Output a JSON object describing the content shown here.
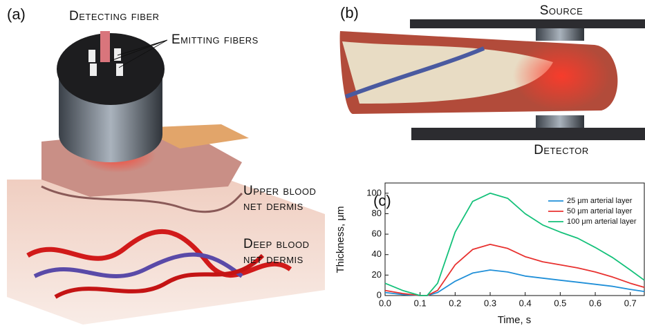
{
  "panels": {
    "a": {
      "label": "(a)",
      "annotations": [
        "Detecting fiber",
        "Emitting fibers",
        "Upper blood",
        "net dermis",
        "Deep blood",
        "net dermis"
      ]
    },
    "b": {
      "label": "(b)",
      "annotations": [
        "Source",
        "Detector"
      ]
    }
  },
  "chart_data": {
    "type": "line",
    "label": "(c)",
    "xlabel": "Time, s",
    "ylabel": "Thickness, μm",
    "x": [
      0,
      0.05,
      0.1,
      0.12,
      0.15,
      0.2,
      0.25,
      0.3,
      0.35,
      0.4,
      0.45,
      0.5,
      0.55,
      0.6,
      0.65,
      0.7,
      0.74
    ],
    "series": [
      {
        "name": "25 μm arterial layer",
        "color": "#1f8fd8",
        "values": [
          3,
          1,
          0,
          0,
          3,
          14,
          22,
          25,
          23,
          19,
          17,
          15,
          13,
          11,
          9,
          6,
          4
        ]
      },
      {
        "name": "50 μm arterial layer",
        "color": "#e8312f",
        "values": [
          5,
          2,
          0,
          0,
          5,
          30,
          45,
          50,
          46,
          38,
          33,
          30,
          27,
          23,
          18,
          12,
          8
        ]
      },
      {
        "name": "100 μm arterial layer",
        "color": "#14c17a",
        "values": [
          12,
          5,
          0,
          0,
          12,
          62,
          92,
          100,
          95,
          80,
          69,
          62,
          56,
          47,
          37,
          25,
          15
        ]
      }
    ],
    "xlim": [
      0,
      0.74
    ],
    "ylim": [
      0,
      110
    ],
    "xticks": [
      {
        "value": 0,
        "label": "0.0"
      },
      0.1,
      0.2,
      0.3,
      0.4,
      0.5,
      0.6,
      0.7
    ],
    "yticks": [
      0,
      20,
      40,
      60,
      80,
      100
    ]
  }
}
